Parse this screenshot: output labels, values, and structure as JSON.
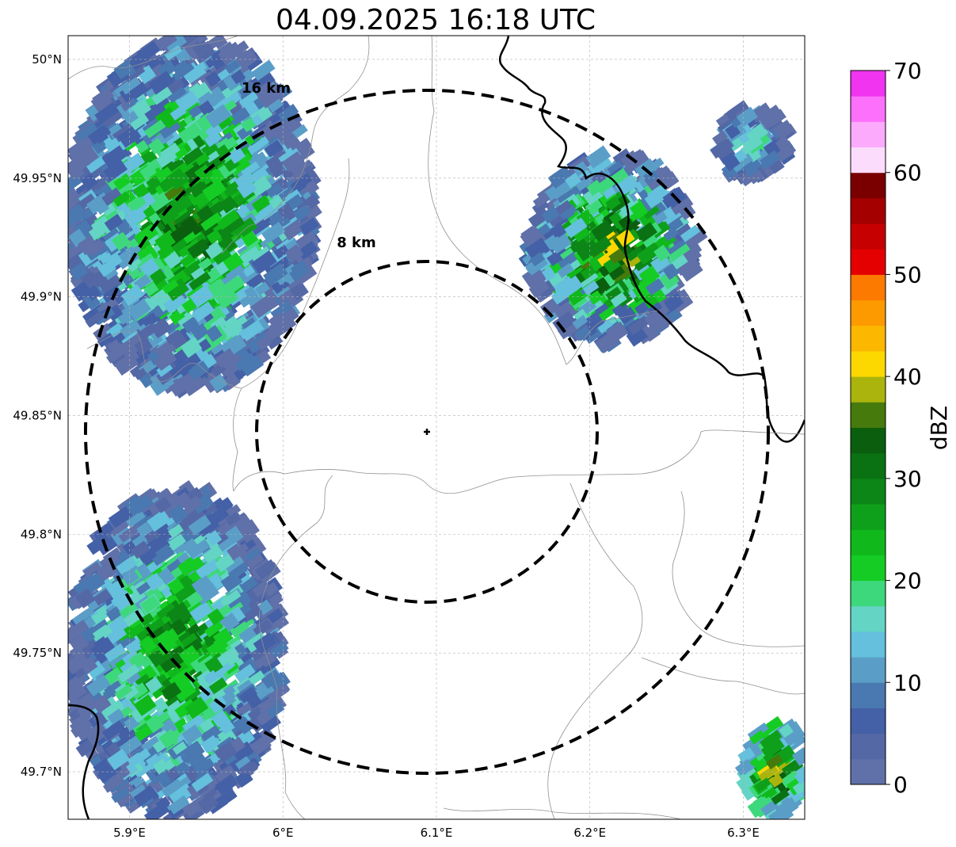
{
  "chart_data": {
    "type": "heatmap",
    "title": "04.09.2025 16:18 UTC",
    "xlim": [
      5.86,
      6.34
    ],
    "ylim": [
      49.68,
      50.01
    ],
    "x_ticks": [
      {
        "value": 5.9,
        "label": "5.9°E"
      },
      {
        "value": 6.0,
        "label": "6°E"
      },
      {
        "value": 6.1,
        "label": "6.1°E"
      },
      {
        "value": 6.2,
        "label": "6.2°E"
      },
      {
        "value": 6.3,
        "label": "6.3°E"
      }
    ],
    "y_ticks": [
      {
        "value": 50.0,
        "label": "50°N"
      },
      {
        "value": 49.95,
        "label": "49.95°N"
      },
      {
        "value": 49.9,
        "label": "49.9°N"
      },
      {
        "value": 49.85,
        "label": "49.85°N"
      },
      {
        "value": 49.8,
        "label": "49.8°N"
      },
      {
        "value": 49.75,
        "label": "49.75°N"
      },
      {
        "value": 49.7,
        "label": "49.7°N"
      }
    ],
    "grid": true,
    "center": {
      "lon": 6.095,
      "lat": 49.844
    },
    "range_rings": [
      {
        "label": "8 km",
        "radius_km": 8
      },
      {
        "label": "16 km",
        "radius_km": 16
      }
    ],
    "colorbar": {
      "label": "dBZ",
      "min": 0,
      "max": 70,
      "step": 2.5,
      "ticks": [
        {
          "value": 0,
          "label": "0"
        },
        {
          "value": 10,
          "label": "10"
        },
        {
          "value": 20,
          "label": "20"
        },
        {
          "value": 30,
          "label": "30"
        },
        {
          "value": 40,
          "label": "40"
        },
        {
          "value": 50,
          "label": "50"
        },
        {
          "value": 60,
          "label": "60"
        },
        {
          "value": 70,
          "label": "70"
        }
      ],
      "colors": [
        "#6070a8",
        "#5468a6",
        "#4460a6",
        "#4a78b0",
        "#5a9ec8",
        "#64c0dc",
        "#64d4c4",
        "#3ed87c",
        "#14cc24",
        "#10b81c",
        "#0ea01a",
        "#0c8616",
        "#0a7212",
        "#0a5e0e",
        "#467a0c",
        "#aab40c",
        "#fcd800",
        "#fcb800",
        "#fc9a00",
        "#fc7a00",
        "#e40000",
        "#c60000",
        "#a40000",
        "#7a0000",
        "#fcdcfc",
        "#fcaafc",
        "#fc70fc",
        "#f034f0"
      ]
    },
    "echo_cells": [
      {
        "name": "northwest-band",
        "lon_range": [
          5.86,
          6.02
        ],
        "lat_range": [
          49.86,
          50.01
        ],
        "dbz_range": [
          2,
          35
        ]
      },
      {
        "name": "northeast-cell",
        "lon_range": [
          6.16,
          6.27
        ],
        "lat_range": [
          49.88,
          49.96
        ],
        "dbz_range": [
          2,
          42
        ]
      },
      {
        "name": "far-northeast-cell",
        "lon_range": [
          6.28,
          6.33
        ],
        "lat_range": [
          49.95,
          49.98
        ],
        "dbz_range": [
          2,
          22
        ]
      },
      {
        "name": "southwest-band",
        "lon_range": [
          5.86,
          6.0
        ],
        "lat_range": [
          49.68,
          49.82
        ],
        "dbz_range": [
          2,
          32
        ]
      },
      {
        "name": "southeast-corner-cell",
        "lon_range": [
          6.3,
          6.34
        ],
        "lat_range": [
          49.68,
          49.72
        ],
        "dbz_range": [
          10,
          42
        ]
      }
    ]
  }
}
